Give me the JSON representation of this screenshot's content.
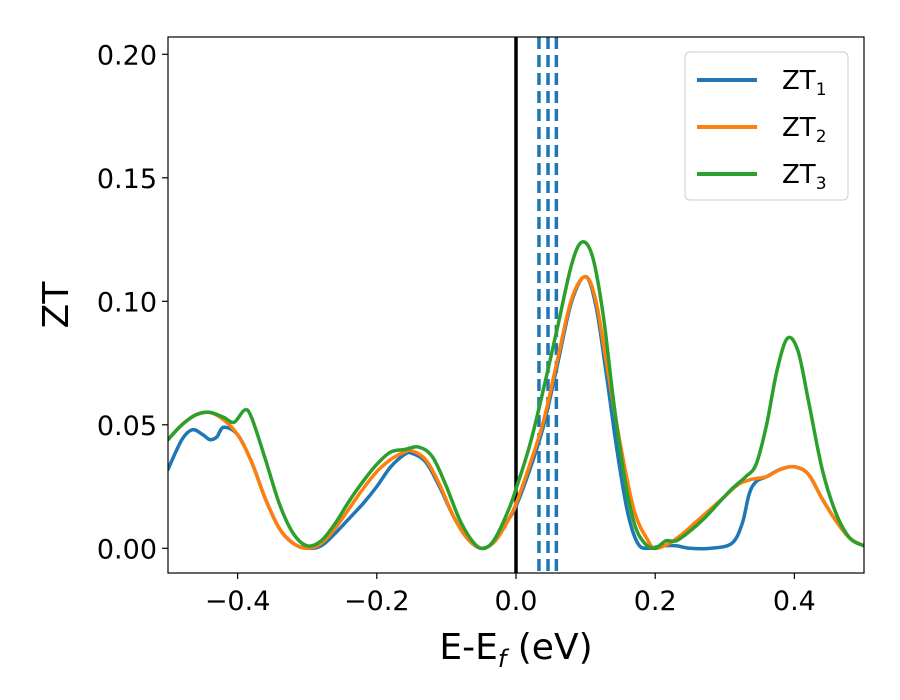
{
  "chart_data": {
    "type": "line",
    "xlabel": {
      "main": "E-E",
      "sub": "f",
      "unit": " (eV)"
    },
    "ylabel": "ZT",
    "xlim": [
      -0.5,
      0.5
    ],
    "ylim": [
      -0.01,
      0.207
    ],
    "xticks": [
      -0.4,
      -0.2,
      0.0,
      0.2,
      0.4
    ],
    "xtick_labels": [
      "−0.4",
      "−0.2",
      "0.0",
      "0.2",
      "0.4"
    ],
    "yticks": [
      0.0,
      0.05,
      0.1,
      0.15,
      0.2
    ],
    "ytick_labels": [
      "0.00",
      "0.05",
      "0.10",
      "0.15",
      "0.20"
    ],
    "grid": false,
    "legend_position": "top-right",
    "vertical_lines": [
      {
        "x": 0.0,
        "style": "solid",
        "color": "#000000"
      },
      {
        "x": 0.033,
        "style": "dashed",
        "color": "#1f77b4"
      },
      {
        "x": 0.046,
        "style": "dashed",
        "color": "#1f77b4"
      },
      {
        "x": 0.058,
        "style": "dashed",
        "color": "#1f77b4"
      }
    ],
    "series": [
      {
        "name": "ZT",
        "sub": "1",
        "color": "#1f77b4",
        "points": [
          [
            -0.5,
            0.032
          ],
          [
            -0.48,
            0.044
          ],
          [
            -0.465,
            0.048
          ],
          [
            -0.45,
            0.046
          ],
          [
            -0.44,
            0.044
          ],
          [
            -0.43,
            0.045
          ],
          [
            -0.42,
            0.049
          ],
          [
            -0.4,
            0.046
          ],
          [
            -0.38,
            0.035
          ],
          [
            -0.36,
            0.02
          ],
          [
            -0.34,
            0.008
          ],
          [
            -0.32,
            0.002
          ],
          [
            -0.3,
            0.0
          ],
          [
            -0.28,
            0.001
          ],
          [
            -0.26,
            0.006
          ],
          [
            -0.24,
            0.012
          ],
          [
            -0.22,
            0.018
          ],
          [
            -0.2,
            0.025
          ],
          [
            -0.18,
            0.033
          ],
          [
            -0.16,
            0.038
          ],
          [
            -0.15,
            0.0385
          ],
          [
            -0.13,
            0.035
          ],
          [
            -0.11,
            0.025
          ],
          [
            -0.09,
            0.013
          ],
          [
            -0.07,
            0.004
          ],
          [
            -0.05,
            0.0
          ],
          [
            -0.03,
            0.003
          ],
          [
            -0.01,
            0.012
          ],
          [
            0.0,
            0.017
          ],
          [
            0.02,
            0.032
          ],
          [
            0.04,
            0.05
          ],
          [
            0.06,
            0.075
          ],
          [
            0.08,
            0.1
          ],
          [
            0.1,
            0.11
          ],
          [
            0.115,
            0.098
          ],
          [
            0.13,
            0.07
          ],
          [
            0.145,
            0.04
          ],
          [
            0.16,
            0.015
          ],
          [
            0.175,
            0.002
          ],
          [
            0.19,
            0.0
          ],
          [
            0.21,
            0.001
          ],
          [
            0.23,
            0.001
          ],
          [
            0.25,
            0.0
          ],
          [
            0.28,
            0.0
          ],
          [
            0.31,
            0.002
          ],
          [
            0.325,
            0.01
          ],
          [
            0.335,
            0.022
          ],
          [
            0.345,
            0.027
          ],
          [
            0.36,
            0.029
          ],
          [
            0.38,
            0.032
          ],
          [
            0.4,
            0.033
          ],
          [
            0.42,
            0.03
          ],
          [
            0.44,
            0.02
          ],
          [
            0.46,
            0.011
          ],
          [
            0.48,
            0.004
          ],
          [
            0.5,
            0.001
          ]
        ]
      },
      {
        "name": "ZT",
        "sub": "2",
        "color": "#ff7f0e",
        "points": [
          [
            -0.5,
            0.044
          ],
          [
            -0.48,
            0.05
          ],
          [
            -0.46,
            0.054
          ],
          [
            -0.44,
            0.055
          ],
          [
            -0.42,
            0.052
          ],
          [
            -0.4,
            0.046
          ],
          [
            -0.38,
            0.035
          ],
          [
            -0.36,
            0.02
          ],
          [
            -0.34,
            0.008
          ],
          [
            -0.32,
            0.002
          ],
          [
            -0.3,
            0.0
          ],
          [
            -0.28,
            0.002
          ],
          [
            -0.26,
            0.008
          ],
          [
            -0.24,
            0.016
          ],
          [
            -0.22,
            0.024
          ],
          [
            -0.2,
            0.031
          ],
          [
            -0.18,
            0.036
          ],
          [
            -0.16,
            0.039
          ],
          [
            -0.15,
            0.0395
          ],
          [
            -0.13,
            0.036
          ],
          [
            -0.11,
            0.026
          ],
          [
            -0.09,
            0.013
          ],
          [
            -0.07,
            0.004
          ],
          [
            -0.05,
            0.0
          ],
          [
            -0.03,
            0.003
          ],
          [
            -0.01,
            0.012
          ],
          [
            0.0,
            0.018
          ],
          [
            0.02,
            0.034
          ],
          [
            0.04,
            0.052
          ],
          [
            0.06,
            0.077
          ],
          [
            0.08,
            0.101
          ],
          [
            0.1,
            0.11
          ],
          [
            0.115,
            0.1
          ],
          [
            0.13,
            0.075
          ],
          [
            0.15,
            0.042
          ],
          [
            0.17,
            0.015
          ],
          [
            0.19,
            0.003
          ],
          [
            0.2,
            0.0
          ],
          [
            0.22,
            0.002
          ],
          [
            0.24,
            0.006
          ],
          [
            0.26,
            0.011
          ],
          [
            0.28,
            0.016
          ],
          [
            0.3,
            0.021
          ],
          [
            0.32,
            0.026
          ],
          [
            0.34,
            0.028
          ],
          [
            0.36,
            0.029
          ],
          [
            0.38,
            0.032
          ],
          [
            0.4,
            0.033
          ],
          [
            0.42,
            0.03
          ],
          [
            0.44,
            0.02
          ],
          [
            0.46,
            0.011
          ],
          [
            0.48,
            0.004
          ],
          [
            0.5,
            0.001
          ]
        ]
      },
      {
        "name": "ZT",
        "sub": "3",
        "color": "#2ca02c",
        "points": [
          [
            -0.5,
            0.044
          ],
          [
            -0.48,
            0.05
          ],
          [
            -0.46,
            0.054
          ],
          [
            -0.44,
            0.055
          ],
          [
            -0.42,
            0.053
          ],
          [
            -0.405,
            0.051
          ],
          [
            -0.39,
            0.056
          ],
          [
            -0.38,
            0.053
          ],
          [
            -0.36,
            0.036
          ],
          [
            -0.34,
            0.018
          ],
          [
            -0.32,
            0.006
          ],
          [
            -0.3,
            0.001
          ],
          [
            -0.28,
            0.003
          ],
          [
            -0.26,
            0.01
          ],
          [
            -0.24,
            0.019
          ],
          [
            -0.22,
            0.027
          ],
          [
            -0.2,
            0.034
          ],
          [
            -0.18,
            0.039
          ],
          [
            -0.16,
            0.04
          ],
          [
            -0.14,
            0.041
          ],
          [
            -0.12,
            0.037
          ],
          [
            -0.1,
            0.025
          ],
          [
            -0.08,
            0.011
          ],
          [
            -0.06,
            0.002
          ],
          [
            -0.045,
            0.0
          ],
          [
            -0.03,
            0.004
          ],
          [
            -0.01,
            0.016
          ],
          [
            0.0,
            0.024
          ],
          [
            0.02,
            0.042
          ],
          [
            0.04,
            0.065
          ],
          [
            0.06,
            0.09
          ],
          [
            0.08,
            0.115
          ],
          [
            0.095,
            0.124
          ],
          [
            0.11,
            0.118
          ],
          [
            0.125,
            0.095
          ],
          [
            0.14,
            0.06
          ],
          [
            0.155,
            0.03
          ],
          [
            0.17,
            0.01
          ],
          [
            0.185,
            0.002
          ],
          [
            0.2,
            0.0
          ],
          [
            0.215,
            0.003
          ],
          [
            0.23,
            0.003
          ],
          [
            0.25,
            0.007
          ],
          [
            0.27,
            0.012
          ],
          [
            0.29,
            0.018
          ],
          [
            0.31,
            0.024
          ],
          [
            0.33,
            0.029
          ],
          [
            0.345,
            0.034
          ],
          [
            0.36,
            0.05
          ],
          [
            0.375,
            0.072
          ],
          [
            0.39,
            0.085
          ],
          [
            0.405,
            0.08
          ],
          [
            0.42,
            0.06
          ],
          [
            0.44,
            0.032
          ],
          [
            0.46,
            0.014
          ],
          [
            0.48,
            0.004
          ],
          [
            0.5,
            0.001
          ]
        ]
      }
    ]
  }
}
